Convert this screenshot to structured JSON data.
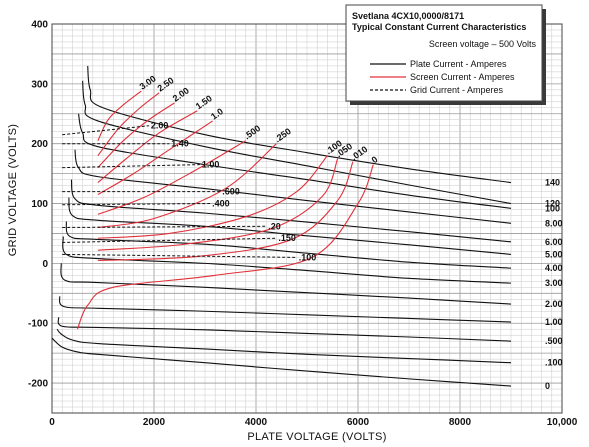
{
  "chart_data": {
    "type": "line",
    "title": "Svetlana 4CX10,0000/8171",
    "subtitle": "Typical Constant Current Characteristics",
    "condition": "Screen voltage – 500 Volts",
    "xlabel": "PLATE VOLTAGE (VOLTS)",
    "ylabel": "GRID VOLTAGE (VOLTS)",
    "xlim": [
      0,
      10000
    ],
    "ylim": [
      -250,
      400
    ],
    "x_ticks": [
      0,
      2000,
      4000,
      6000,
      8000,
      10000
    ],
    "x_tick_labels": [
      "0",
      "2000",
      "4000",
      "6000",
      "8000",
      "10,000"
    ],
    "y_ticks": [
      -200,
      -100,
      0,
      100,
      200,
      300,
      400
    ],
    "y_tick_labels": [
      "-200",
      "-100",
      "0",
      "100",
      "200",
      "300",
      "400"
    ],
    "grid": true,
    "legend": {
      "placement": "top-right",
      "entries": [
        {
          "label": "Plate Current - Amperes",
          "style": "solid",
          "color": "#111111"
        },
        {
          "label": "Screen Current - Amperes",
          "style": "solid",
          "color": "#e0303a"
        },
        {
          "label": "Grid Current - Amperes",
          "style": "dashed",
          "color": "#111111"
        }
      ]
    },
    "series": [
      {
        "kind": "plate",
        "label": "140",
        "points": [
          [
            700,
            330
          ],
          [
            750,
            290
          ],
          [
            1000,
            260
          ],
          [
            3000,
            215
          ],
          [
            5000,
            185
          ],
          [
            7000,
            158
          ],
          [
            9000,
            135
          ]
        ]
      },
      {
        "kind": "plate",
        "label": "120",
        "points": [
          [
            600,
            305
          ],
          [
            650,
            265
          ],
          [
            900,
            238
          ],
          [
            3000,
            195
          ],
          [
            5000,
            163
          ],
          [
            7000,
            131
          ],
          [
            9000,
            100
          ]
        ]
      },
      {
        "kind": "plate",
        "label": "100",
        "points": [
          [
            520,
            250
          ],
          [
            600,
            218
          ],
          [
            900,
            195
          ],
          [
            3000,
            165
          ],
          [
            5000,
            140
          ],
          [
            7000,
            114
          ],
          [
            9000,
            92
          ]
        ]
      },
      {
        "kind": "plate",
        "label": "8.00",
        "points": [
          [
            450,
            190
          ],
          [
            520,
            160
          ],
          [
            900,
            145
          ],
          [
            3000,
            125
          ],
          [
            5000,
            105
          ],
          [
            7000,
            86
          ],
          [
            9000,
            67
          ]
        ]
      },
      {
        "kind": "plate",
        "label": "6.00",
        "points": [
          [
            380,
            140
          ],
          [
            450,
            108
          ],
          [
            900,
            97
          ],
          [
            3000,
            84
          ],
          [
            5000,
            69
          ],
          [
            7000,
            53
          ],
          [
            9000,
            36
          ]
        ]
      },
      {
        "kind": "plate",
        "label": "5.00",
        "points": [
          [
            330,
            110
          ],
          [
            400,
            80
          ],
          [
            900,
            72
          ],
          [
            3000,
            62
          ],
          [
            5000,
            46
          ],
          [
            7000,
            31
          ],
          [
            9000,
            15
          ]
        ]
      },
      {
        "kind": "plate",
        "label": "4.00",
        "points": [
          [
            280,
            70
          ],
          [
            350,
            45
          ],
          [
            900,
            40
          ],
          [
            3000,
            32
          ],
          [
            5000,
            17
          ],
          [
            7000,
            2
          ],
          [
            9000,
            -8
          ]
        ]
      },
      {
        "kind": "plate",
        "label": "3.00",
        "points": [
          [
            220,
            45
          ],
          [
            280,
            15
          ],
          [
            900,
            8
          ],
          [
            3000,
            0
          ],
          [
            5000,
            -12
          ],
          [
            7000,
            -25
          ],
          [
            9000,
            -33
          ]
        ]
      },
      {
        "kind": "plate",
        "label": "2.00",
        "points": [
          [
            180,
            0
          ],
          [
            250,
            -28
          ],
          [
            900,
            -32
          ],
          [
            3000,
            -40
          ],
          [
            5000,
            -49
          ],
          [
            7000,
            -58
          ],
          [
            9000,
            -68
          ]
        ]
      },
      {
        "kind": "plate",
        "label": "1.00",
        "points": [
          [
            150,
            -55
          ],
          [
            230,
            -72
          ],
          [
            900,
            -75
          ],
          [
            3000,
            -80
          ],
          [
            5000,
            -86
          ],
          [
            7000,
            -92
          ],
          [
            9000,
            -98
          ]
        ]
      },
      {
        "kind": "plate",
        "label": ".500",
        "points": [
          [
            130,
            -90
          ],
          [
            200,
            -105
          ],
          [
            900,
            -107
          ],
          [
            3000,
            -111
          ],
          [
            5000,
            -117
          ],
          [
            7000,
            -123
          ],
          [
            9000,
            -130
          ]
        ]
      },
      {
        "kind": "plate",
        "label": ".100",
        "points": [
          [
            100,
            -110
          ],
          [
            180,
            -118
          ],
          [
            400,
            -128
          ],
          [
            900,
            -134
          ],
          [
            3000,
            -143
          ],
          [
            5000,
            -152
          ],
          [
            7000,
            -159
          ],
          [
            9000,
            -166
          ]
        ]
      },
      {
        "kind": "plate",
        "label": "0",
        "points": [
          [
            0,
            -125
          ],
          [
            200,
            -140
          ],
          [
            500,
            -148
          ],
          [
            900,
            -152
          ],
          [
            3000,
            -166
          ],
          [
            5000,
            -180
          ],
          [
            7000,
            -193
          ],
          [
            9000,
            -205
          ]
        ]
      },
      {
        "kind": "screen",
        "label": "3.00",
        "points": [
          [
            900,
            205
          ],
          [
            1100,
            240
          ],
          [
            1400,
            265
          ],
          [
            1750,
            288
          ]
        ]
      },
      {
        "kind": "screen",
        "label": "2.50",
        "points": [
          [
            900,
            180
          ],
          [
            1300,
            225
          ],
          [
            1700,
            258
          ],
          [
            2100,
            285
          ]
        ]
      },
      {
        "kind": "screen",
        "label": "2.00",
        "points": [
          [
            900,
            160
          ],
          [
            1400,
            205
          ],
          [
            1900,
            240
          ],
          [
            2400,
            268
          ]
        ]
      },
      {
        "kind": "screen",
        "label": "1.50",
        "points": [
          [
            900,
            135
          ],
          [
            1500,
            178
          ],
          [
            2100,
            218
          ],
          [
            2850,
            255
          ]
        ]
      },
      {
        "kind": "screen",
        "label": "1.0",
        "points": [
          [
            900,
            115
          ],
          [
            1600,
            150
          ],
          [
            2300,
            190
          ],
          [
            3150,
            238
          ]
        ]
      },
      {
        "kind": "screen",
        "label": ".500",
        "points": [
          [
            900,
            82
          ],
          [
            1800,
            110
          ],
          [
            2800,
            155
          ],
          [
            3800,
            205
          ]
        ]
      },
      {
        "kind": "screen",
        "label": ".250",
        "points": [
          [
            900,
            60
          ],
          [
            2000,
            75
          ],
          [
            3400,
            125
          ],
          [
            4400,
            200
          ]
        ]
      },
      {
        "kind": "screen",
        "label": ".100",
        "points": [
          [
            900,
            42
          ],
          [
            2300,
            50
          ],
          [
            3800,
            78
          ],
          [
            4800,
            120
          ],
          [
            5400,
            180
          ]
        ]
      },
      {
        "kind": "screen",
        "label": ".050",
        "points": [
          [
            900,
            22
          ],
          [
            2600,
            32
          ],
          [
            4300,
            58
          ],
          [
            5300,
            112
          ],
          [
            5600,
            175
          ]
        ]
      },
      {
        "kind": "screen",
        "label": ".010",
        "points": [
          [
            900,
            5
          ],
          [
            2900,
            12
          ],
          [
            4700,
            40
          ],
          [
            5600,
            105
          ],
          [
            5900,
            170
          ]
        ]
      },
      {
        "kind": "screen",
        "label": "0",
        "points": [
          [
            500,
            -110
          ],
          [
            700,
            -70
          ],
          [
            1200,
            -40
          ],
          [
            3200,
            -20
          ],
          [
            5100,
            10
          ],
          [
            6000,
            100
          ],
          [
            6300,
            165
          ]
        ]
      },
      {
        "kind": "grid",
        "label": "2.00",
        "points": [
          [
            200,
            215
          ],
          [
            1900,
            230
          ]
        ]
      },
      {
        "kind": "grid",
        "label": "1.40",
        "points": [
          [
            200,
            200
          ],
          [
            2300,
            200
          ]
        ]
      },
      {
        "kind": "grid",
        "label": "1.00",
        "points": [
          [
            200,
            160
          ],
          [
            2900,
            165
          ]
        ]
      },
      {
        "kind": "grid",
        "label": ".600",
        "points": [
          [
            200,
            120
          ],
          [
            3300,
            120
          ]
        ]
      },
      {
        "kind": "grid",
        "label": ".400",
        "points": [
          [
            200,
            98
          ],
          [
            3100,
            100
          ]
        ]
      },
      {
        "kind": "grid",
        "label": ".20",
        "points": [
          [
            200,
            60
          ],
          [
            4200,
            62
          ]
        ]
      },
      {
        "kind": "grid",
        "label": ".150",
        "points": [
          [
            200,
            35
          ],
          [
            4400,
            42
          ]
        ]
      },
      {
        "kind": "grid",
        "label": ".100",
        "points": [
          [
            200,
            15
          ],
          [
            4800,
            10
          ]
        ]
      }
    ]
  },
  "colors": {
    "plate": "#111111",
    "screen": "#e0303a",
    "grid_current": "#111111",
    "grid_minor": "#c9c9c9",
    "grid_major": "#9a9a9a"
  }
}
